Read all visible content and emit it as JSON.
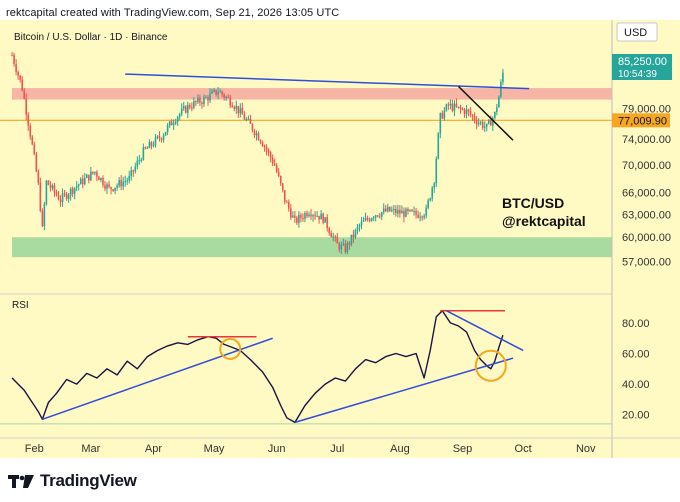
{
  "header": {
    "text": "rektcapital created with TradingView.com, Sep 21, 2026 13:05 UTC"
  },
  "price_pane": {
    "symbol_line": "Bitcoin / U.S. Dollar · 1D · Binance",
    "currency_button": "USD",
    "current_price": "85,250.00",
    "countdown": "10:54:39",
    "level_tag": "77,009.90",
    "annotation_line1": "BTC/USD",
    "annotation_line2": "@rektcapital",
    "colors": {
      "resistance_zone": "#f4a9a0",
      "support_zone": "#9ad69a",
      "level_line": "#f5a623",
      "trendline": "#2f4fd8",
      "downtrend": "#111111",
      "up": "#26a69a",
      "down": "#ef5350"
    }
  },
  "rsi_pane": {
    "label": "RSI",
    "colors": {
      "line": "#1a1446",
      "trendline": "#2f4fd8",
      "top_line": "#e53935",
      "circle": "#f5a623"
    }
  },
  "footer": {
    "brand": "TradingView"
  },
  "chart_data": [
    {
      "type": "candlestick",
      "title": "Bitcoin / U.S. Dollar · 1D · Binance",
      "x_ticks": [
        "Feb",
        "Mar",
        "Apr",
        "May",
        "Jun",
        "Jul",
        "Aug",
        "Sep",
        "Oct",
        "Nov"
      ],
      "y_ticks": [
        79000,
        74000,
        70000,
        66000,
        63000,
        60000,
        57000
      ],
      "y_tick_labels": [
        "79,000.00",
        "74,000.00",
        "70,000.00",
        "66,000.00",
        "63,000.00",
        "60,000.00",
        "57,000.00"
      ],
      "ylim": [
        55000,
        95000
      ],
      "scale": "log",
      "zones": [
        {
          "name": "resistance",
          "from": 80500,
          "to": 82500
        },
        {
          "name": "support",
          "from": 57500,
          "to": 60000
        }
      ],
      "horizontal_level": 77009.9,
      "last_price": 85250,
      "close_path": [
        [
          "2026-01-21",
          88500
        ],
        [
          "2026-01-26",
          82500
        ],
        [
          "2026-02-01",
          71000
        ],
        [
          "2026-02-03",
          67000
        ],
        [
          "2026-02-05",
          61000
        ],
        [
          "2026-02-07",
          67500
        ],
        [
          "2026-02-14",
          65000
        ],
        [
          "2026-02-22",
          67000
        ],
        [
          "2026-03-03",
          69000
        ],
        [
          "2026-03-10",
          66500
        ],
        [
          "2026-03-20",
          68000
        ],
        [
          "2026-03-27",
          72000
        ],
        [
          "2026-04-05",
          74500
        ],
        [
          "2026-04-12",
          77500
        ],
        [
          "2026-04-19",
          79500
        ],
        [
          "2026-04-26",
          80500
        ],
        [
          "2026-05-03",
          82000
        ],
        [
          "2026-05-10",
          80000
        ],
        [
          "2026-05-17",
          77000
        ],
        [
          "2026-05-24",
          74000
        ],
        [
          "2026-05-31",
          70000
        ],
        [
          "2026-06-05",
          65000
        ],
        [
          "2026-06-10",
          62000
        ],
        [
          "2026-06-17",
          63500
        ],
        [
          "2026-06-24",
          62500
        ],
        [
          "2026-07-01",
          59000
        ],
        [
          "2026-07-05",
          58500
        ],
        [
          "2026-07-12",
          61500
        ],
        [
          "2026-07-19",
          63000
        ],
        [
          "2026-07-26",
          63500
        ],
        [
          "2026-08-02",
          63200
        ],
        [
          "2026-08-09",
          63000
        ],
        [
          "2026-08-14",
          63400
        ],
        [
          "2026-08-18",
          68000
        ],
        [
          "2026-08-21",
          77500
        ],
        [
          "2026-08-25",
          79500
        ],
        [
          "2026-08-29",
          79000
        ],
        [
          "2026-09-03",
          78500
        ],
        [
          "2026-09-08",
          77000
        ],
        [
          "2026-09-13",
          75800
        ],
        [
          "2026-09-17",
          78000
        ],
        [
          "2026-09-19",
          81000
        ],
        [
          "2026-09-21",
          85250
        ]
      ]
    },
    {
      "type": "line",
      "title": "RSI",
      "y_ticks": [
        80,
        60,
        40,
        20
      ],
      "y_tick_labels": [
        "80.00",
        "60.00",
        "40.00",
        "20.00"
      ],
      "ylim": [
        10,
        95
      ],
      "x": [
        "2026-01-21",
        "2026-01-24",
        "2026-01-27",
        "2026-01-30",
        "2026-02-01",
        "2026-02-03",
        "2026-02-05",
        "2026-02-08",
        "2026-02-12",
        "2026-02-17",
        "2026-02-22",
        "2026-02-27",
        "2026-03-04",
        "2026-03-09",
        "2026-03-14",
        "2026-03-19",
        "2026-03-24",
        "2026-03-29",
        "2026-04-03",
        "2026-04-08",
        "2026-04-13",
        "2026-04-18",
        "2026-04-23",
        "2026-04-28",
        "2026-05-02",
        "2026-05-06",
        "2026-05-10",
        "2026-05-14",
        "2026-05-19",
        "2026-05-25",
        "2026-05-30",
        "2026-06-03",
        "2026-06-06",
        "2026-06-10",
        "2026-06-15",
        "2026-06-20",
        "2026-06-25",
        "2026-06-30",
        "2026-07-05",
        "2026-07-10",
        "2026-07-15",
        "2026-07-20",
        "2026-07-25",
        "2026-07-30",
        "2026-08-04",
        "2026-08-09",
        "2026-08-13",
        "2026-08-16",
        "2026-08-19",
        "2026-08-22",
        "2026-08-26",
        "2026-08-30",
        "2026-09-03",
        "2026-09-07",
        "2026-09-10",
        "2026-09-13",
        "2026-09-15",
        "2026-09-17",
        "2026-09-19",
        "2026-09-21"
      ],
      "values": [
        44,
        40,
        36,
        30,
        26,
        22,
        17,
        28,
        34,
        43,
        40,
        47,
        44,
        50,
        46,
        55,
        50,
        58,
        62,
        65,
        67,
        66,
        69,
        71,
        70,
        66,
        64,
        62,
        56,
        48,
        38,
        26,
        18,
        15,
        26,
        34,
        40,
        44,
        42,
        50,
        56,
        54,
        58,
        60,
        58,
        60,
        44,
        62,
        84,
        88,
        80,
        78,
        74,
        62,
        56,
        52,
        50,
        55,
        64,
        72
      ],
      "horizontal_lines": [
        {
          "name": "resistance",
          "value": 71,
          "from": "2026-04-18",
          "to": "2026-05-22"
        },
        {
          "name": "resistance",
          "value": 88,
          "from": "2026-08-21",
          "to": "2026-09-22"
        }
      ]
    }
  ]
}
